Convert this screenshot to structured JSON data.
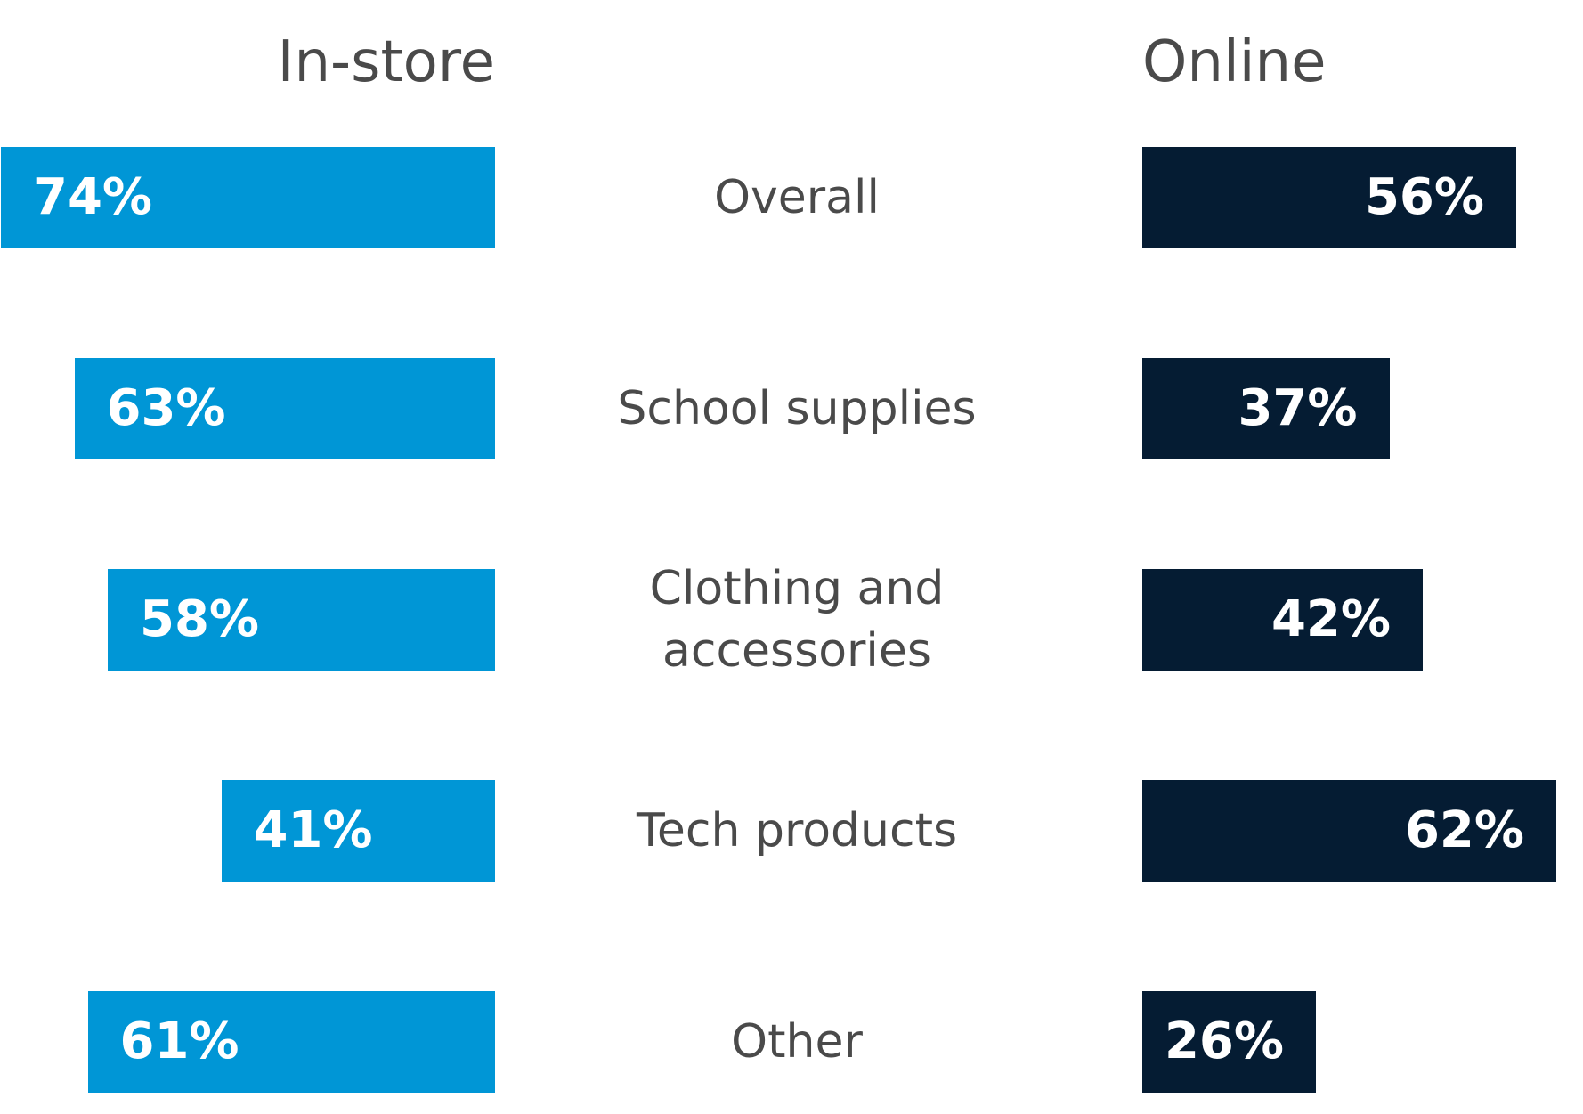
{
  "chart_data": {
    "type": "butterfly-bar",
    "categories": [
      "Overall",
      "School supplies",
      "Clothing and accessories",
      "Tech products",
      "Other"
    ],
    "series": [
      {
        "name": "In-store",
        "color": "#0096d6",
        "values": [
          74,
          63,
          58,
          41,
          61
        ],
        "value_labels": [
          "74%",
          "63%",
          "58%",
          "41%",
          "61%"
        ]
      },
      {
        "name": "Online",
        "color": "#051c33",
        "values": [
          56,
          37,
          42,
          62,
          26
        ],
        "value_labels": [
          "56%",
          "37%",
          "42%",
          "62%",
          "26%"
        ]
      }
    ]
  }
}
